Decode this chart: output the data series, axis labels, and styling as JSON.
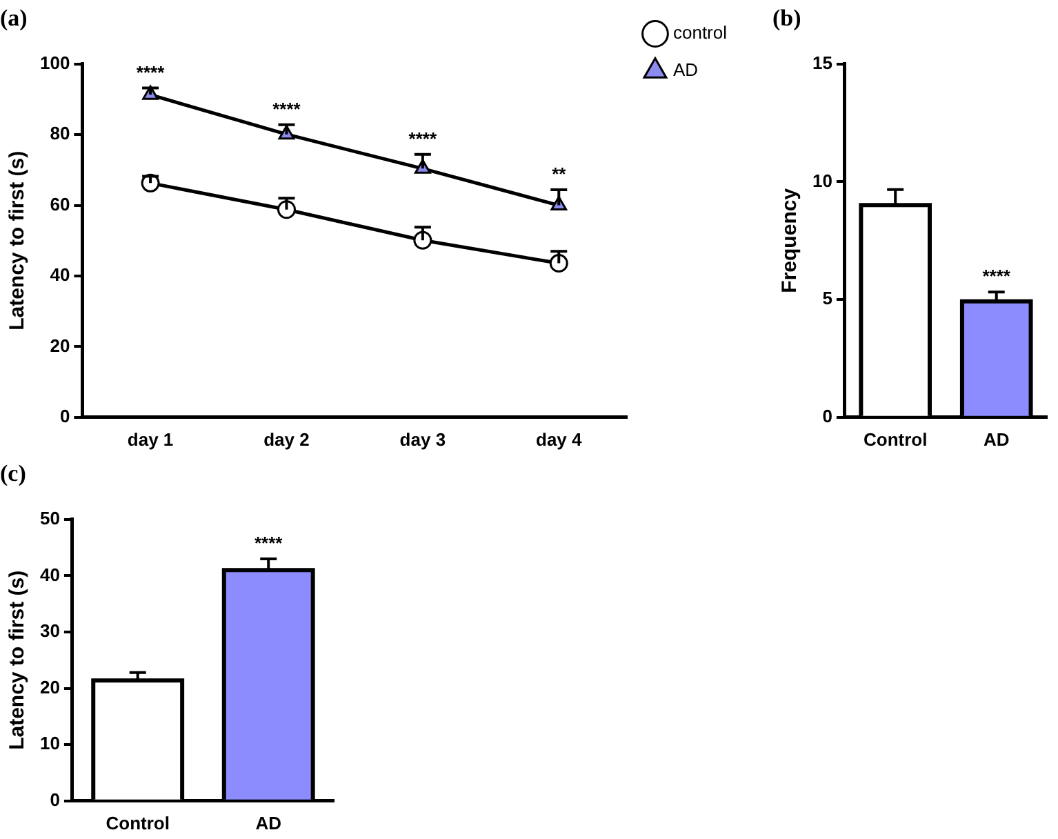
{
  "chart_data": [
    {
      "type": "line",
      "title": "(a)",
      "ylabel": "Latency to first (s)",
      "categories": [
        "day 1",
        "day 2",
        "day 3",
        "day 4"
      ],
      "ylim": [
        0,
        100
      ],
      "yticks": [
        0,
        20,
        40,
        60,
        80,
        100
      ],
      "grid": false,
      "legend": "top right",
      "line_style": "solid",
      "series": [
        {
          "name": "control",
          "color": "#ffffff",
          "marker": "circle",
          "values": [
            66.3,
            58.8,
            50.1,
            43.6
          ],
          "errors": [
            [
              66.3,
              68.2
            ],
            [
              58.8,
              62
            ],
            [
              50.1,
              53.8
            ],
            [
              43.6,
              47
            ]
          ]
        },
        {
          "name": "AD",
          "color": "#8c8cf0",
          "marker": "triangle",
          "values": [
            91.3,
            80.1,
            70.4,
            60
          ],
          "errors": [
            [
              91.3,
              93.2
            ],
            [
              80.1,
              82.8
            ],
            [
              70.4,
              74.4
            ],
            [
              60,
              64.4
            ]
          ]
        }
      ],
      "annotations": [
        {
          "text": "****",
          "x": "day 1",
          "y": 93.2
        },
        {
          "text": "****",
          "x": "day 2",
          "y": 82.8
        },
        {
          "text": "****",
          "x": "day 3",
          "y": 74.4
        },
        {
          "text": "**",
          "x": "day 4",
          "y": 64.4
        }
      ]
    },
    {
      "type": "bar",
      "title": "(b)",
      "ylabel": "Frequency",
      "categories": [
        "Control",
        "AD"
      ],
      "values": [
        9.01,
        4.92
      ],
      "colors": [
        "#ffffff",
        "#8c8cff"
      ],
      "errors": [
        [
          9.01,
          9.67
        ],
        [
          4.92,
          5.32
        ]
      ],
      "ylim": [
        0,
        15
      ],
      "yticks": [
        0,
        5,
        10,
        15
      ],
      "grid": false,
      "legend": false,
      "annotations": [
        {
          "text": "****",
          "x": "AD",
          "y": 5.32
        }
      ]
    },
    {
      "type": "bar",
      "title": "(c)",
      "ylabel": "Latency to first (s)",
      "categories": [
        "Control",
        "AD"
      ],
      "values": [
        21.4,
        41
      ],
      "colors": [
        "#ffffff",
        "#8c8cff"
      ],
      "errors": [
        [
          21.4,
          22.8
        ],
        [
          41,
          43
        ]
      ],
      "ylim": [
        0,
        50
      ],
      "yticks": [
        0,
        10,
        20,
        30,
        40,
        50
      ],
      "grid": false,
      "legend": false,
      "annotations": [
        {
          "text": "****",
          "x": "AD",
          "y": 43
        }
      ]
    }
  ]
}
